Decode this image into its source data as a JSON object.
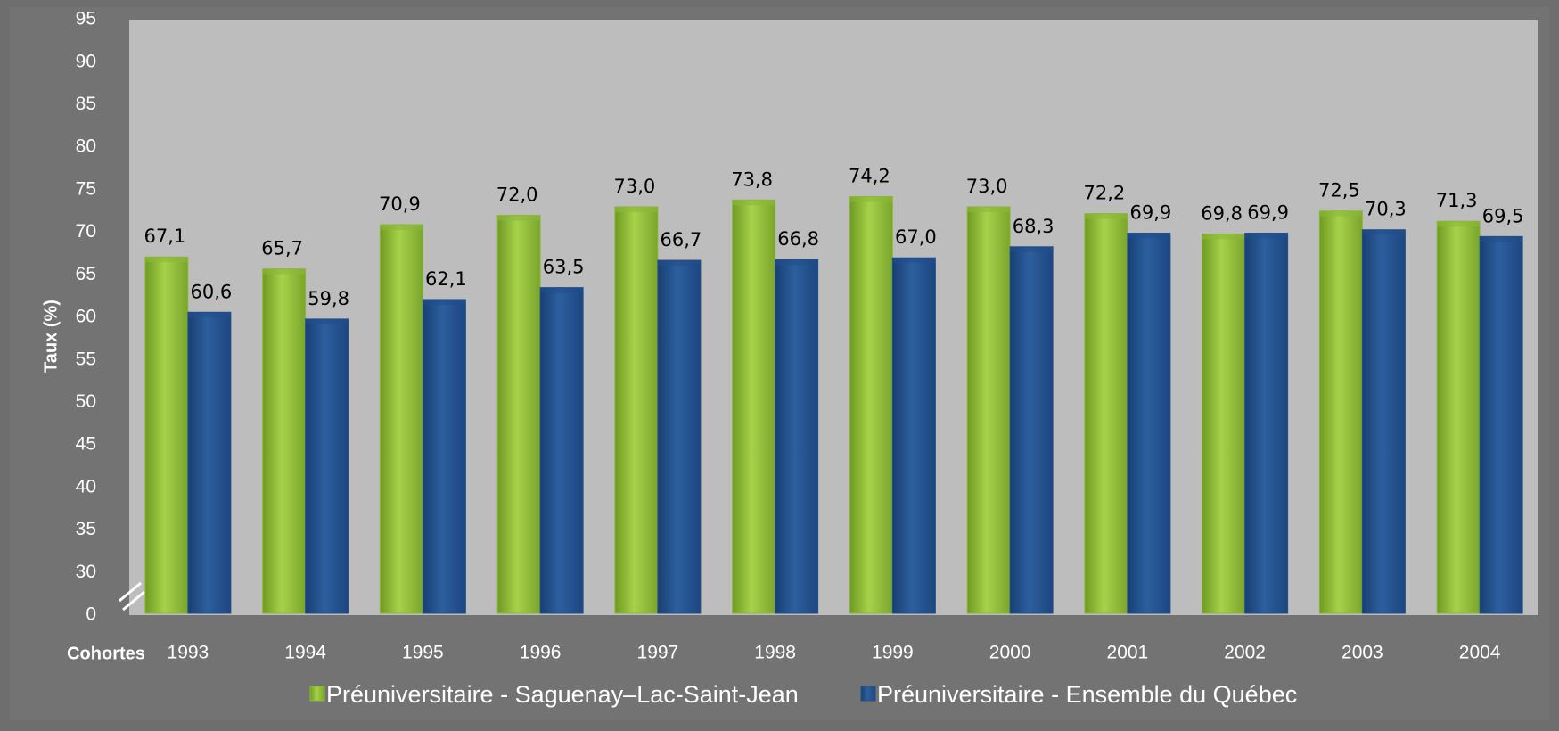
{
  "chart_data": {
    "type": "bar",
    "y_label": "Taux (%)",
    "x_label": "Cohortes",
    "categories": [
      "1993",
      "1994",
      "1995",
      "1996",
      "1997",
      "1998",
      "1999",
      "2000",
      "2001",
      "2002",
      "2003",
      "2004"
    ],
    "series": [
      {
        "name": "Préuniversitaire - Saguenay–Lac-Saint-Jean",
        "color": "#8cb83a",
        "values": [
          67.1,
          65.7,
          70.9,
          72.0,
          73.0,
          73.8,
          74.2,
          73.0,
          72.2,
          69.8,
          72.5,
          71.3
        ],
        "value_labels": [
          "67,1",
          "65,7",
          "70,9",
          "72,0",
          "73,0",
          "73,8",
          "74,2",
          "73,0",
          "72,2",
          "69,8",
          "72,5",
          "71,3"
        ]
      },
      {
        "name": "Préuniversitaire - Ensemble du Québec",
        "color": "#224f8a",
        "values": [
          60.6,
          59.8,
          62.1,
          63.5,
          66.7,
          66.8,
          67.0,
          68.3,
          69.9,
          69.9,
          70.3,
          69.5
        ],
        "value_labels": [
          "60,6",
          "59,8",
          "62,1",
          "63,5",
          "66,7",
          "66,8",
          "67,0",
          "68,3",
          "69,9",
          "69,9",
          "70,3",
          "69,5"
        ]
      }
    ],
    "ylim": [
      0,
      95
    ],
    "axis_break": [
      0,
      30
    ],
    "yticks": [
      0,
      30,
      35,
      40,
      45,
      50,
      55,
      60,
      65,
      70,
      75,
      80,
      85,
      90,
      95
    ],
    "legend": "bottom"
  }
}
